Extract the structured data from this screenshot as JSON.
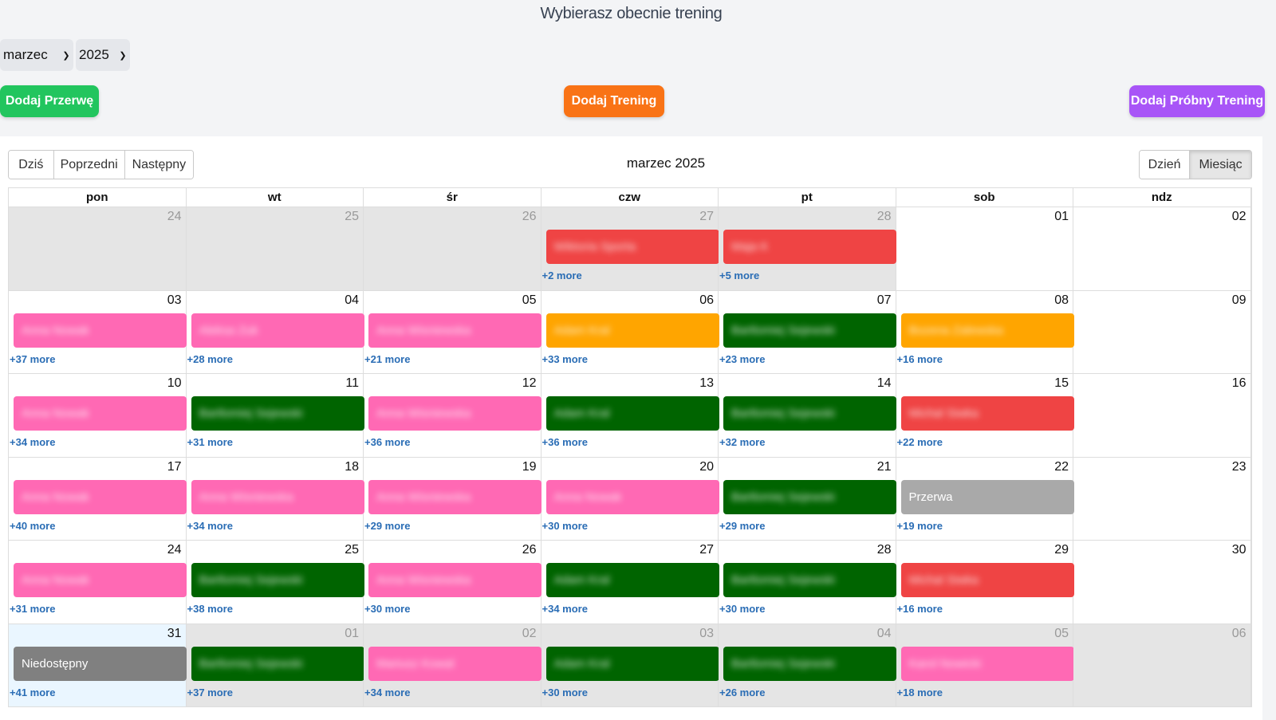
{
  "title": "Wybierasz obecnie trening",
  "selects": {
    "month": "marzec",
    "year": "2025"
  },
  "buttons": {
    "add_break": "Dodaj Przerwę",
    "add_training": "Dodaj Trening",
    "add_trial": "Dodaj Próbny Trening"
  },
  "colors": {
    "green_btn": "#22c55e",
    "orange_btn": "#f97316",
    "purple_btn": "#a855f7",
    "pink": "#ff69b4",
    "dark_green": "#006400",
    "orange": "#ffa500",
    "red": "#ef4444",
    "gray": "#a9a9a9",
    "dark_gray": "#808080"
  },
  "toolbar": {
    "today": "Dziś",
    "prev": "Poprzedni",
    "next": "Następny",
    "label": "marzec 2025",
    "day": "Dzień",
    "month": "Miesiąc"
  },
  "weekdays": [
    "pon",
    "wt",
    "śr",
    "czw",
    "pt",
    "sob",
    "ndz"
  ],
  "weeks": [
    [
      {
        "d": "24",
        "off": true
      },
      {
        "d": "25",
        "off": true
      },
      {
        "d": "26",
        "off": true
      },
      {
        "d": "27",
        "off": true,
        "event": {
          "color": "red",
          "text": "Wiktoria Sporta"
        },
        "more": "+2 more"
      },
      {
        "d": "28",
        "off": true,
        "event": {
          "color": "red",
          "text": "Maja K"
        },
        "more": "+5 more"
      },
      {
        "d": "01"
      },
      {
        "d": "02"
      }
    ],
    [
      {
        "d": "03",
        "event": {
          "color": "pink",
          "text": "Anna Nowak"
        },
        "more": "+37 more"
      },
      {
        "d": "04",
        "event": {
          "color": "pink",
          "text": "Aleksa Zuk"
        },
        "more": "+28 more"
      },
      {
        "d": "05",
        "event": {
          "color": "pink",
          "text": "Anna Wisniewska"
        },
        "more": "+21 more"
      },
      {
        "d": "06",
        "event": {
          "color": "orange",
          "text": "Adam Kral"
        },
        "more": "+33 more"
      },
      {
        "d": "07",
        "event": {
          "color": "dark_green",
          "text": "Bartlomiej Sejewski"
        },
        "more": "+23 more"
      },
      {
        "d": "08",
        "event": {
          "color": "orange",
          "text": "Bozena Zalewska"
        },
        "more": "+16 more"
      },
      {
        "d": "09"
      }
    ],
    [
      {
        "d": "10",
        "event": {
          "color": "pink",
          "text": "Anna Nowak"
        },
        "more": "+34 more"
      },
      {
        "d": "11",
        "event": {
          "color": "dark_green",
          "text": "Bartlomiej Sejewski"
        },
        "more": "+31 more"
      },
      {
        "d": "12",
        "event": {
          "color": "pink",
          "text": "Anna Wisniewska"
        },
        "more": "+36 more"
      },
      {
        "d": "13",
        "event": {
          "color": "dark_green",
          "text": "Adam Kral"
        },
        "more": "+36 more"
      },
      {
        "d": "14",
        "event": {
          "color": "dark_green",
          "text": "Bartlomiej Sejewski"
        },
        "more": "+32 more"
      },
      {
        "d": "15",
        "event": {
          "color": "red",
          "text": "Michal Siwka"
        },
        "more": "+22 more"
      },
      {
        "d": "16"
      }
    ],
    [
      {
        "d": "17",
        "event": {
          "color": "pink",
          "text": "Anna Nowak"
        },
        "more": "+40 more"
      },
      {
        "d": "18",
        "event": {
          "color": "pink",
          "text": "Anna Wisniewska"
        },
        "more": "+34 more"
      },
      {
        "d": "19",
        "event": {
          "color": "pink",
          "text": "Anna Wisniewska"
        },
        "more": "+29 more"
      },
      {
        "d": "20",
        "event": {
          "color": "pink",
          "text": "Anna Nowak"
        },
        "more": "+30 more"
      },
      {
        "d": "21",
        "event": {
          "color": "dark_green",
          "text": "Bartlomiej Sejewski"
        },
        "more": "+29 more"
      },
      {
        "d": "22",
        "event": {
          "color": "gray",
          "text": "Przerwa",
          "clear": true
        },
        "more": "+19 more"
      },
      {
        "d": "23"
      }
    ],
    [
      {
        "d": "24",
        "event": {
          "color": "pink",
          "text": "Anna Nowak"
        },
        "more": "+31 more"
      },
      {
        "d": "25",
        "event": {
          "color": "dark_green",
          "text": "Bartlomiej Sejewski"
        },
        "more": "+38 more"
      },
      {
        "d": "26",
        "event": {
          "color": "pink",
          "text": "Anna Wisniewska"
        },
        "more": "+30 more"
      },
      {
        "d": "27",
        "event": {
          "color": "dark_green",
          "text": "Adam Kral"
        },
        "more": "+34 more"
      },
      {
        "d": "28",
        "event": {
          "color": "dark_green",
          "text": "Bartlomiej Sejewski"
        },
        "more": "+30 more"
      },
      {
        "d": "29",
        "event": {
          "color": "red",
          "text": "Michal Siwka"
        },
        "more": "+16 more"
      },
      {
        "d": "30"
      }
    ],
    [
      {
        "d": "31",
        "today": true,
        "event": {
          "color": "dark_gray",
          "text": "Niedostępny",
          "clear": true
        },
        "more": "+41 more"
      },
      {
        "d": "01",
        "off": true,
        "event": {
          "color": "dark_green",
          "text": "Bartlomiej Sejewski"
        },
        "more": "+37 more"
      },
      {
        "d": "02",
        "off": true,
        "event": {
          "color": "pink",
          "text": "Mariusz Kowal"
        },
        "more": "+34 more"
      },
      {
        "d": "03",
        "off": true,
        "event": {
          "color": "dark_green",
          "text": "Adam Kral"
        },
        "more": "+30 more"
      },
      {
        "d": "04",
        "off": true,
        "event": {
          "color": "dark_green",
          "text": "Bartlomiej Sejewski"
        },
        "more": "+26 more"
      },
      {
        "d": "05",
        "off": true,
        "event": {
          "color": "pink",
          "text": "Karol Nowicki"
        },
        "more": "+18 more"
      },
      {
        "d": "06",
        "off": true
      }
    ]
  ]
}
